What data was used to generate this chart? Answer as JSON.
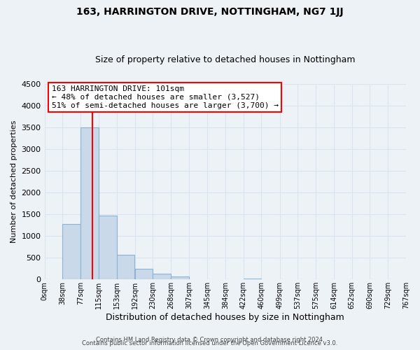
{
  "title": "163, HARRINGTON DRIVE, NOTTINGHAM, NG7 1JJ",
  "subtitle": "Size of property relative to detached houses in Nottingham",
  "xlabel": "Distribution of detached houses by size in Nottingham",
  "ylabel": "Number of detached properties",
  "bar_left_edges": [
    0,
    38,
    77,
    115,
    153,
    192,
    230,
    268,
    307,
    345,
    384,
    422,
    460,
    499,
    537,
    575,
    614,
    652,
    690,
    729
  ],
  "bar_heights": [
    0,
    1280,
    3500,
    1470,
    570,
    240,
    130,
    70,
    0,
    0,
    0,
    25,
    0,
    0,
    0,
    0,
    0,
    0,
    0,
    0
  ],
  "bin_width": 38,
  "bar_color": "#c9d9ea",
  "bar_edge_color": "#8ab4d4",
  "x_tick_labels": [
    "0sqm",
    "38sqm",
    "77sqm",
    "115sqm",
    "153sqm",
    "192sqm",
    "230sqm",
    "268sqm",
    "307sqm",
    "345sqm",
    "384sqm",
    "422sqm",
    "460sqm",
    "499sqm",
    "537sqm",
    "575sqm",
    "614sqm",
    "652sqm",
    "690sqm",
    "729sqm",
    "767sqm"
  ],
  "ylim": [
    0,
    4500
  ],
  "xlim": [
    0,
    767
  ],
  "red_line_x": 101,
  "annotation_line1": "163 HARRINGTON DRIVE: 101sqm",
  "annotation_line2": "← 48% of detached houses are smaller (3,527)",
  "annotation_line3": "51% of semi-detached houses are larger (3,700) →",
  "grid_color": "#d8e4ee",
  "background_color": "#edf2f7",
  "footer_line1": "Contains HM Land Registry data © Crown copyright and database right 2024.",
  "footer_line2": "Contains public sector information licensed under the Open Government Licence v3.0."
}
